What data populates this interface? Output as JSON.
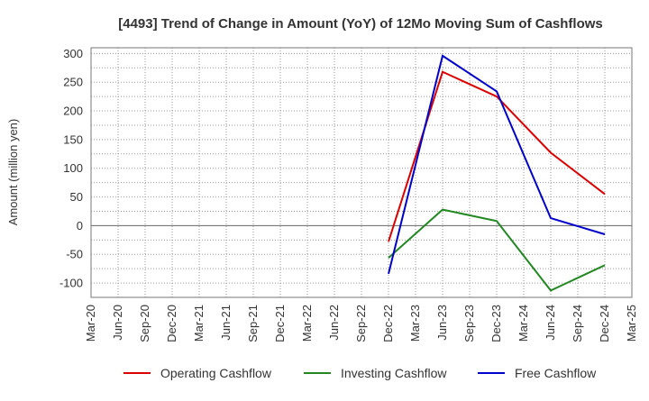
{
  "chart_data": {
    "type": "line",
    "title": "[4493]  Trend of Change in Amount (YoY) of 12Mo Moving Sum of Cashflows",
    "xlabel": "",
    "ylabel": "Amount (million yen)",
    "ylim": [
      -125,
      310
    ],
    "yticks": [
      300,
      250,
      200,
      150,
      100,
      50,
      0,
      -50,
      -100
    ],
    "categories": [
      "Mar-20",
      "Jun-20",
      "Sep-20",
      "Dec-20",
      "Mar-21",
      "Jun-21",
      "Sep-21",
      "Dec-21",
      "Mar-22",
      "Jun-22",
      "Sep-22",
      "Dec-22",
      "Mar-23",
      "Jun-23",
      "Sep-23",
      "Dec-23",
      "Mar-24",
      "Jun-24",
      "Sep-24",
      "Dec-24",
      "Mar-25"
    ],
    "grid": true,
    "legend_position": "bottom",
    "series": [
      {
        "name": "Operating Cashflow",
        "color": "#dd0000",
        "values": [
          null,
          null,
          null,
          null,
          null,
          null,
          null,
          null,
          null,
          null,
          null,
          -28,
          null,
          268,
          null,
          225,
          null,
          127,
          null,
          55,
          null
        ]
      },
      {
        "name": "Investing Cashflow",
        "color": "#228822",
        "values": [
          null,
          null,
          null,
          null,
          null,
          null,
          null,
          null,
          null,
          null,
          null,
          -56,
          null,
          28,
          null,
          8,
          null,
          -113,
          null,
          -69,
          null
        ]
      },
      {
        "name": "Free Cashflow",
        "color": "#0000cc",
        "values": [
          null,
          null,
          null,
          null,
          null,
          null,
          null,
          null,
          null,
          null,
          null,
          -84,
          null,
          296,
          null,
          234,
          null,
          13,
          null,
          -15,
          null
        ]
      }
    ]
  }
}
